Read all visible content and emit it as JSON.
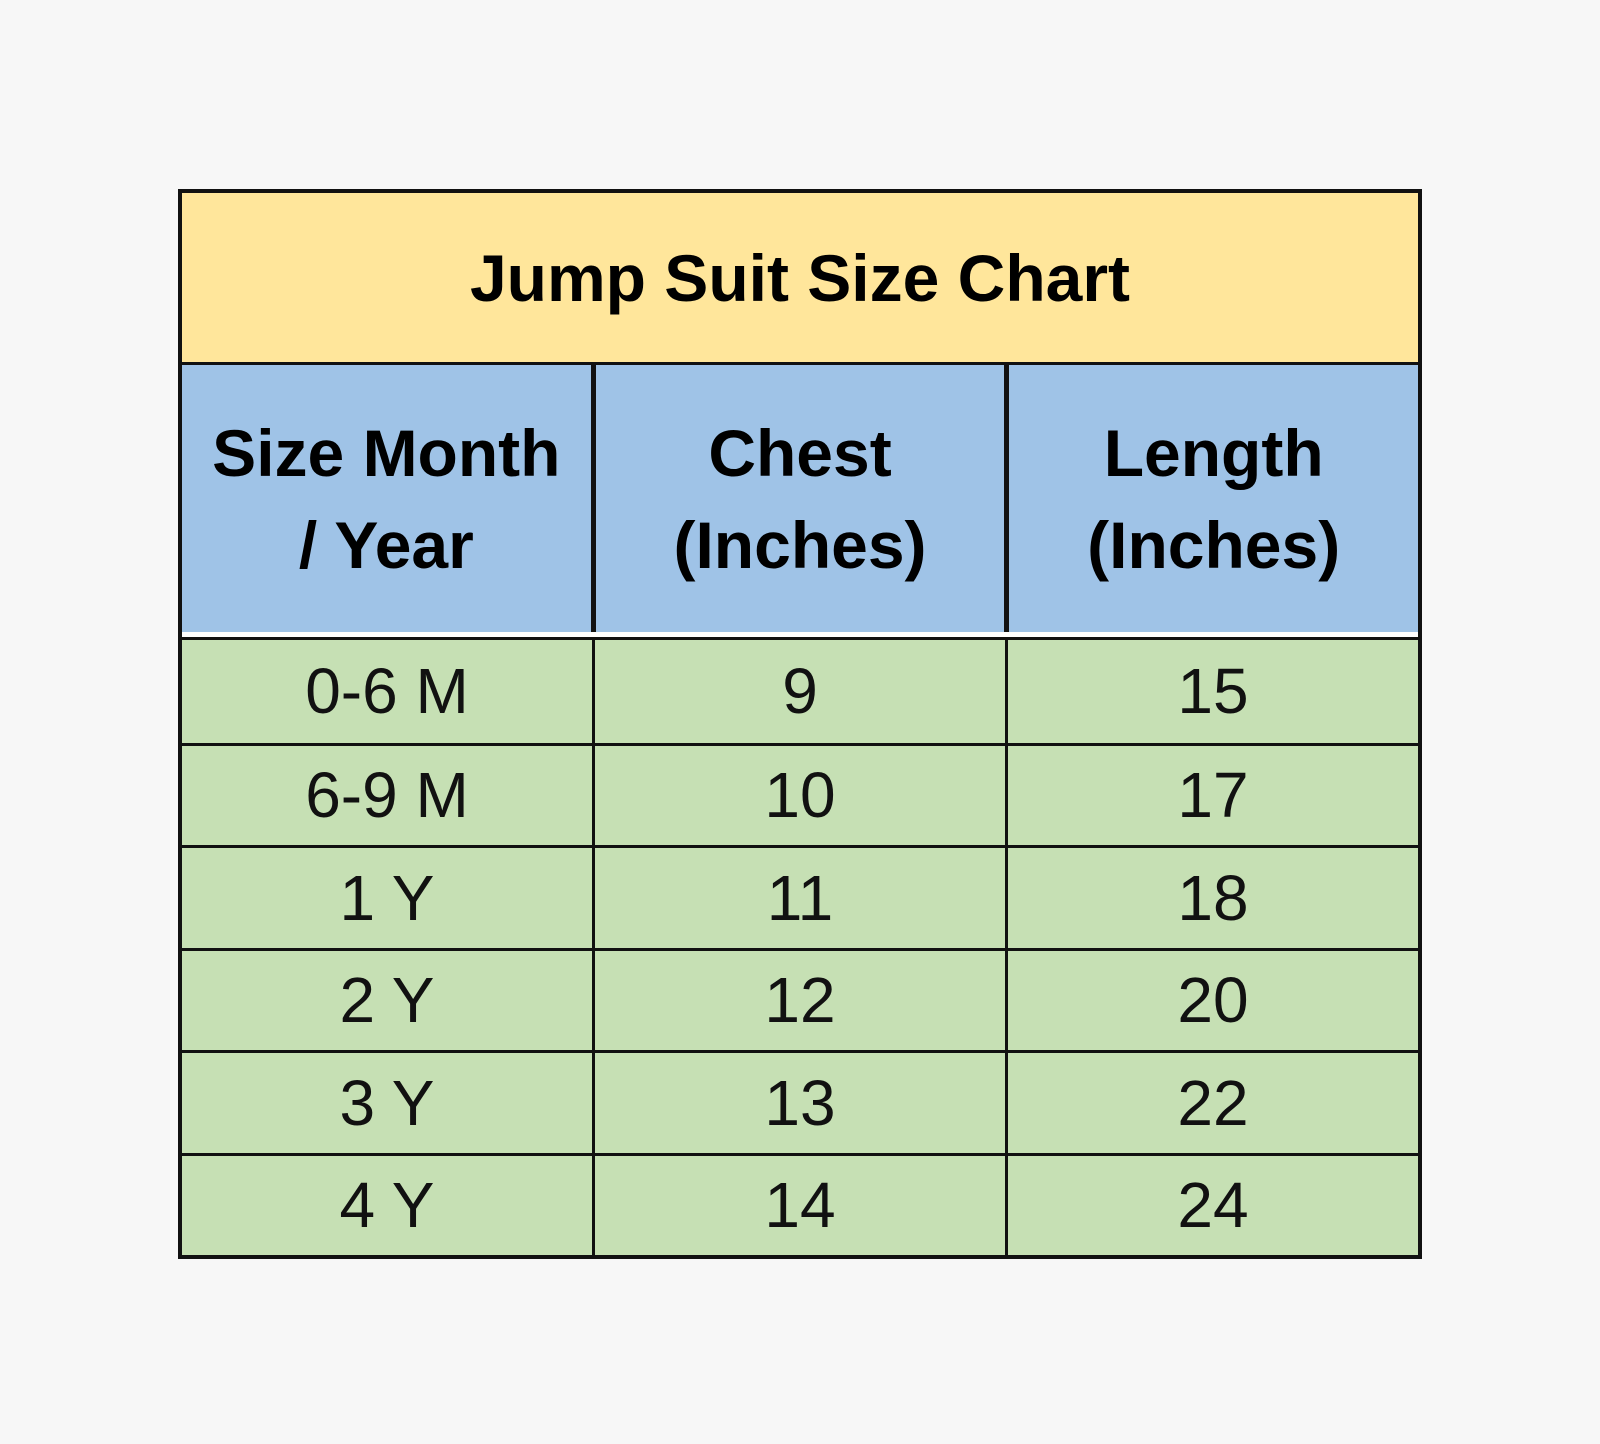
{
  "title": "Jump Suit Size Chart",
  "colors": {
    "title_bg": "#ffe69b",
    "header_bg": "#9fc3e7",
    "body_bg": "#c6e0b4"
  },
  "headers": [
    "Size Month\n/ Year",
    "Chest\n(Inches)",
    "Length\n(Inches)"
  ],
  "rows": [
    [
      "0-6 M",
      "9",
      "15"
    ],
    [
      "6-9 M",
      "10",
      "17"
    ],
    [
      "1 Y",
      "11",
      "18"
    ],
    [
      "2 Y",
      "12",
      "20"
    ],
    [
      "3 Y",
      "13",
      "22"
    ],
    [
      "4 Y",
      "14",
      "24"
    ]
  ]
}
